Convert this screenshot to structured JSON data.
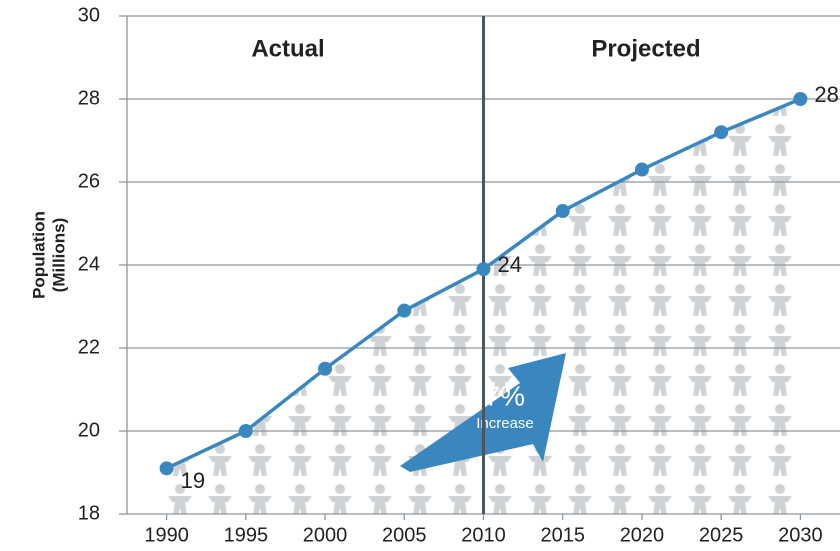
{
  "chart_data": {
    "type": "line",
    "y_label": [
      "Population",
      "(Millions)"
    ],
    "annotations": {
      "left": "Actual",
      "right": "Projected",
      "change": "47%",
      "change_note": "Increase"
    },
    "x": [
      1990,
      1995,
      2000,
      2005,
      2010,
      2015,
      2020,
      2025,
      2030
    ],
    "series": [
      {
        "color": "#3a87c0",
        "values": [
          19.1,
          20.0,
          21.5,
          22.9,
          23.9,
          25.3,
          26.3,
          27.2,
          28.0
        ],
        "value_labels": [
          "19",
          null,
          null,
          null,
          "24",
          null,
          null,
          null,
          "28"
        ]
      }
    ],
    "divider_x": 2010,
    "xlim": [
      1987.5,
      2032.5
    ],
    "xticks": [
      1990,
      1995,
      2000,
      2005,
      2010,
      2015,
      2020,
      2025,
      2030
    ],
    "ylim": [
      18,
      30
    ],
    "yticks": [
      18,
      20,
      22,
      24,
      26,
      28,
      30
    ],
    "grid": true
  }
}
